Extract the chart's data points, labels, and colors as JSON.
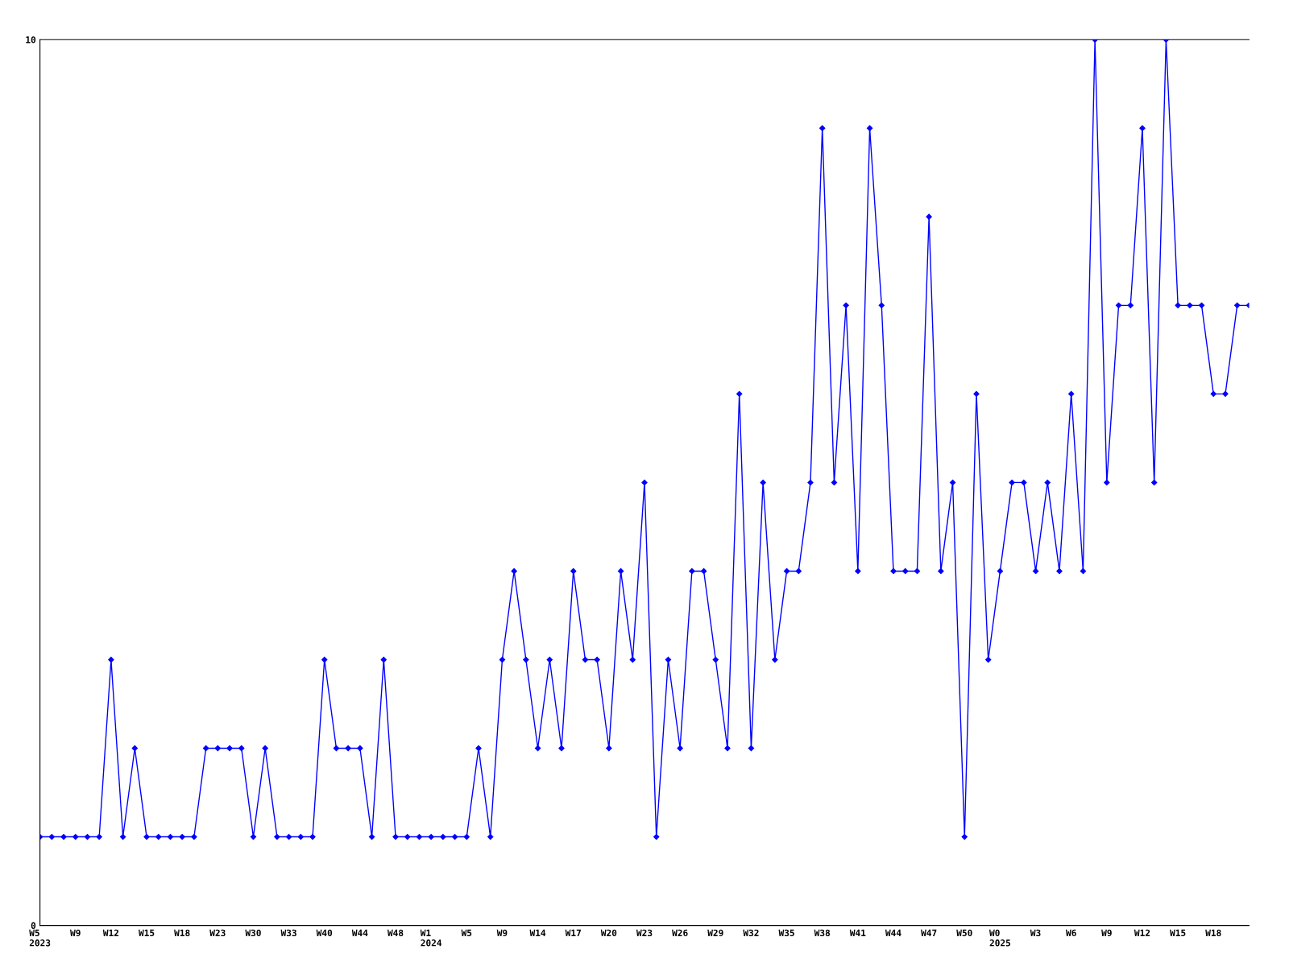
{
  "chart_data": {
    "type": "line",
    "categories": [
      "W5\n2023",
      null,
      null,
      "W9",
      null,
      null,
      "W12",
      null,
      null,
      "W15",
      null,
      null,
      "W18",
      null,
      null,
      "W23",
      null,
      null,
      "W30",
      null,
      null,
      "W33",
      null,
      null,
      "W40",
      null,
      null,
      "W44",
      null,
      null,
      "W48",
      null,
      null,
      "W1\n2024",
      null,
      null,
      "W5",
      null,
      null,
      "W9",
      null,
      null,
      "W14",
      null,
      null,
      "W17",
      null,
      null,
      "W20",
      null,
      null,
      "W23",
      null,
      null,
      "W26",
      null,
      null,
      "W29",
      null,
      null,
      "W32",
      null,
      null,
      "W35",
      null,
      null,
      "W38",
      null,
      null,
      "W41",
      null,
      null,
      "W44",
      null,
      null,
      "W47",
      null,
      null,
      "W50",
      null,
      null,
      "W0\n2025",
      null,
      null,
      "W3",
      null,
      null,
      "W6",
      null,
      null,
      "W9",
      null,
      null,
      "W12",
      null,
      null,
      "W15",
      null,
      null,
      "W18",
      null,
      null,
      null
    ],
    "series": [
      {
        "color": "#0000ff",
        "values": [
          1,
          1,
          1,
          1,
          1,
          1,
          3,
          1,
          2,
          1,
          1,
          1,
          1,
          1,
          2,
          2,
          2,
          2,
          1,
          2,
          1,
          1,
          1,
          1,
          3,
          2,
          2,
          2,
          1,
          3,
          1,
          1,
          1,
          1,
          1,
          1,
          1,
          2,
          1,
          3,
          4,
          3,
          2,
          3,
          2,
          4,
          3,
          3,
          2,
          4,
          3,
          5,
          1,
          3,
          2,
          4,
          4,
          3,
          2,
          6,
          2,
          5,
          3,
          4,
          4,
          5,
          9,
          5,
          7,
          4,
          9,
          7,
          4,
          4,
          4,
          8,
          4,
          5,
          1,
          6,
          3,
          4,
          5,
          5,
          4,
          5,
          4,
          6,
          4,
          10,
          5,
          7,
          7,
          9,
          5,
          10,
          7,
          7,
          7,
          6,
          6,
          7,
          7
        ]
      }
    ],
    "ylim": [
      0,
      10
    ],
    "yticks": [
      0,
      10
    ],
    "grid": false,
    "marker": "diamond",
    "line_style": "solid"
  }
}
